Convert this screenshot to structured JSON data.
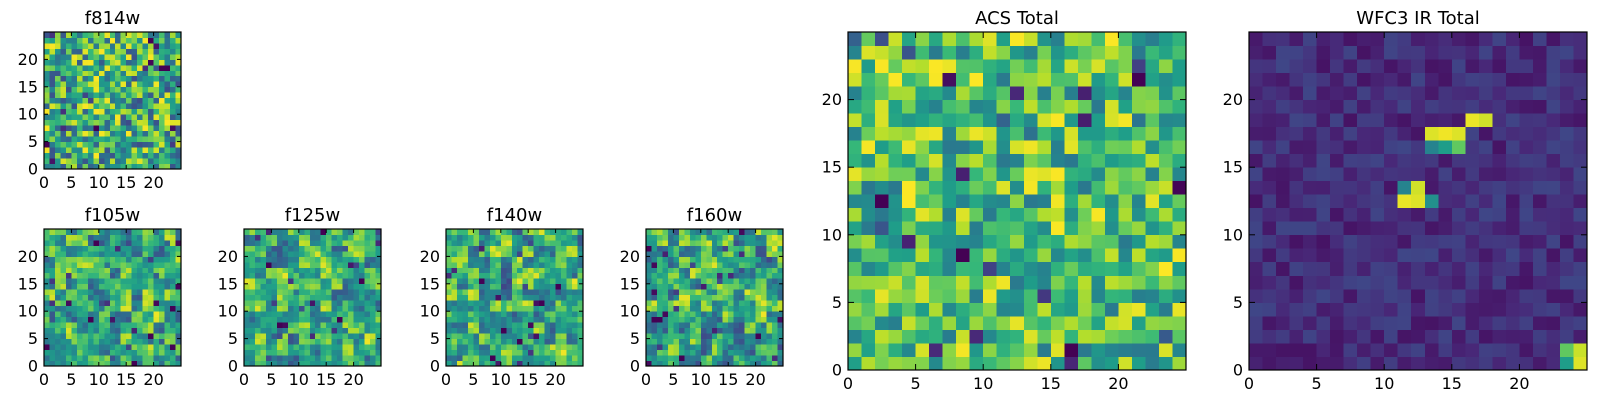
{
  "chart_data": [
    {
      "id": "f814w",
      "type": "heatmap",
      "title": "f814w",
      "xlim": [
        0,
        25
      ],
      "ylim": [
        0,
        25
      ],
      "xticks": [
        "0",
        "5",
        "10",
        "15",
        "20"
      ],
      "yticks": [
        "0",
        "5",
        "10",
        "15",
        "20"
      ],
      "colormap": "viridis",
      "grid_size": 25,
      "pattern": {
        "kind": "noise",
        "seed": 11,
        "scale": 1,
        "base": 0.62,
        "amp": 0.38
      }
    },
    {
      "id": "f105w",
      "type": "heatmap",
      "title": "f105w",
      "xlim": [
        0,
        25
      ],
      "ylim": [
        0,
        25
      ],
      "xticks": [
        "0",
        "5",
        "10",
        "15",
        "20"
      ],
      "yticks": [
        "0",
        "5",
        "10",
        "15",
        "20"
      ],
      "colormap": "viridis",
      "grid_size": 25,
      "pattern": {
        "kind": "noise",
        "seed": 23,
        "scale": 2,
        "base": 0.62,
        "amp": 0.38
      }
    },
    {
      "id": "f125w",
      "type": "heatmap",
      "title": "f125w",
      "xlim": [
        0,
        25
      ],
      "ylim": [
        0,
        25
      ],
      "xticks": [
        "0",
        "5",
        "10",
        "15",
        "20"
      ],
      "yticks": [
        "0",
        "5",
        "10",
        "15",
        "20"
      ],
      "colormap": "viridis",
      "grid_size": 25,
      "pattern": {
        "kind": "noise",
        "seed": 37,
        "scale": 2,
        "base": 0.62,
        "amp": 0.38
      }
    },
    {
      "id": "f140w",
      "type": "heatmap",
      "title": "f140w",
      "xlim": [
        0,
        25
      ],
      "ylim": [
        0,
        25
      ],
      "xticks": [
        "0",
        "5",
        "10",
        "15",
        "20"
      ],
      "yticks": [
        "0",
        "5",
        "10",
        "15",
        "20"
      ],
      "colormap": "viridis",
      "grid_size": 25,
      "pattern": {
        "kind": "noise",
        "seed": 51,
        "scale": 2,
        "base": 0.6,
        "amp": 0.4
      }
    },
    {
      "id": "f160w",
      "type": "heatmap",
      "title": "f160w",
      "xlim": [
        0,
        25
      ],
      "ylim": [
        0,
        25
      ],
      "xticks": [
        "0",
        "5",
        "10",
        "15",
        "20"
      ],
      "yticks": [
        "0",
        "5",
        "10",
        "15",
        "20"
      ],
      "colormap": "viridis",
      "grid_size": 25,
      "pattern": {
        "kind": "noise",
        "seed": 67,
        "scale": 2,
        "base": 0.6,
        "amp": 0.4
      }
    },
    {
      "id": "acs-total",
      "type": "heatmap",
      "title": "ACS Total",
      "xlim": [
        0,
        25
      ],
      "ylim": [
        0,
        25
      ],
      "xticks": [
        "0",
        "5",
        "10",
        "15",
        "20"
      ],
      "yticks": [
        "0",
        "5",
        "10",
        "15",
        "20"
      ],
      "colormap": "viridis",
      "grid_size": 25,
      "pattern": {
        "kind": "noise",
        "seed": 83,
        "scale": 1,
        "base": 0.7,
        "amp": 0.3
      }
    },
    {
      "id": "wfc3-ir-total",
      "type": "heatmap",
      "title": "WFC3 IR Total",
      "xlim": [
        0,
        25
      ],
      "ylim": [
        0,
        25
      ],
      "xticks": [
        "0",
        "5",
        "10",
        "15",
        "20"
      ],
      "yticks": [
        "0",
        "5",
        "10",
        "15",
        "20"
      ],
      "colormap": "viridis",
      "grid_size": 25,
      "pattern": {
        "kind": "background",
        "seed": 97,
        "base": 0.13,
        "amp": 0.08,
        "hot": [
          {
            "x": 13,
            "y": 17,
            "v": 0.95
          },
          {
            "x": 14,
            "y": 17,
            "v": 0.98
          },
          {
            "x": 15,
            "y": 17,
            "v": 0.95
          },
          {
            "x": 16,
            "y": 18,
            "v": 0.97
          },
          {
            "x": 17,
            "y": 18,
            "v": 0.93
          },
          {
            "x": 15,
            "y": 16,
            "v": 0.75
          },
          {
            "x": 14,
            "y": 16,
            "v": 0.55
          },
          {
            "x": 13,
            "y": 16,
            "v": 0.45
          },
          {
            "x": 11,
            "y": 12,
            "v": 0.97
          },
          {
            "x": 12,
            "y": 12,
            "v": 0.95
          },
          {
            "x": 12,
            "y": 13,
            "v": 0.93
          },
          {
            "x": 11,
            "y": 13,
            "v": 0.45
          },
          {
            "x": 13,
            "y": 12,
            "v": 0.5
          },
          {
            "x": 23,
            "y": 0,
            "v": 0.55
          },
          {
            "x": 23,
            "y": 1,
            "v": 0.75
          },
          {
            "x": 24,
            "y": 0,
            "v": 0.95
          },
          {
            "x": 24,
            "y": 1,
            "v": 0.92
          }
        ]
      }
    }
  ]
}
